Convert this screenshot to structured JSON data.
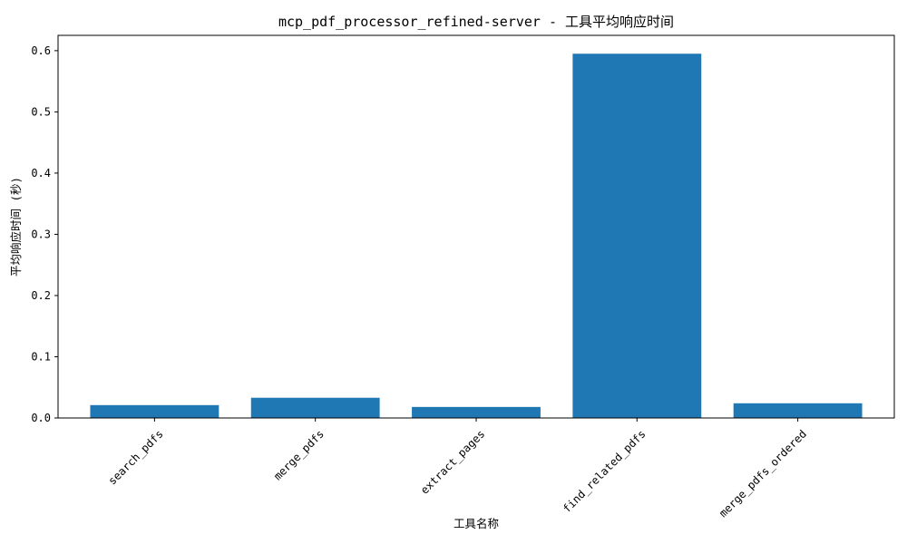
{
  "chart_data": {
    "type": "bar",
    "title": "mcp_pdf_processor_refined-server - 工具平均响应时间",
    "xlabel": "工具名称",
    "ylabel": "平均响应时间 (秒)",
    "categories": [
      "search_pdfs",
      "merge_pdfs",
      "extract_pages",
      "find_related_pdfs",
      "merge_pdfs_ordered"
    ],
    "values": [
      0.021,
      0.033,
      0.018,
      0.595,
      0.024
    ],
    "ylim": [
      0,
      0.625
    ],
    "yticks": [
      0.0,
      0.1,
      0.2,
      0.3,
      0.4,
      0.5,
      0.6
    ],
    "ytick_labels": [
      "0.0",
      "0.1",
      "0.2",
      "0.3",
      "0.4",
      "0.5",
      "0.6"
    ],
    "grid": false,
    "legend": false,
    "bar_color": "#1f77b4"
  }
}
